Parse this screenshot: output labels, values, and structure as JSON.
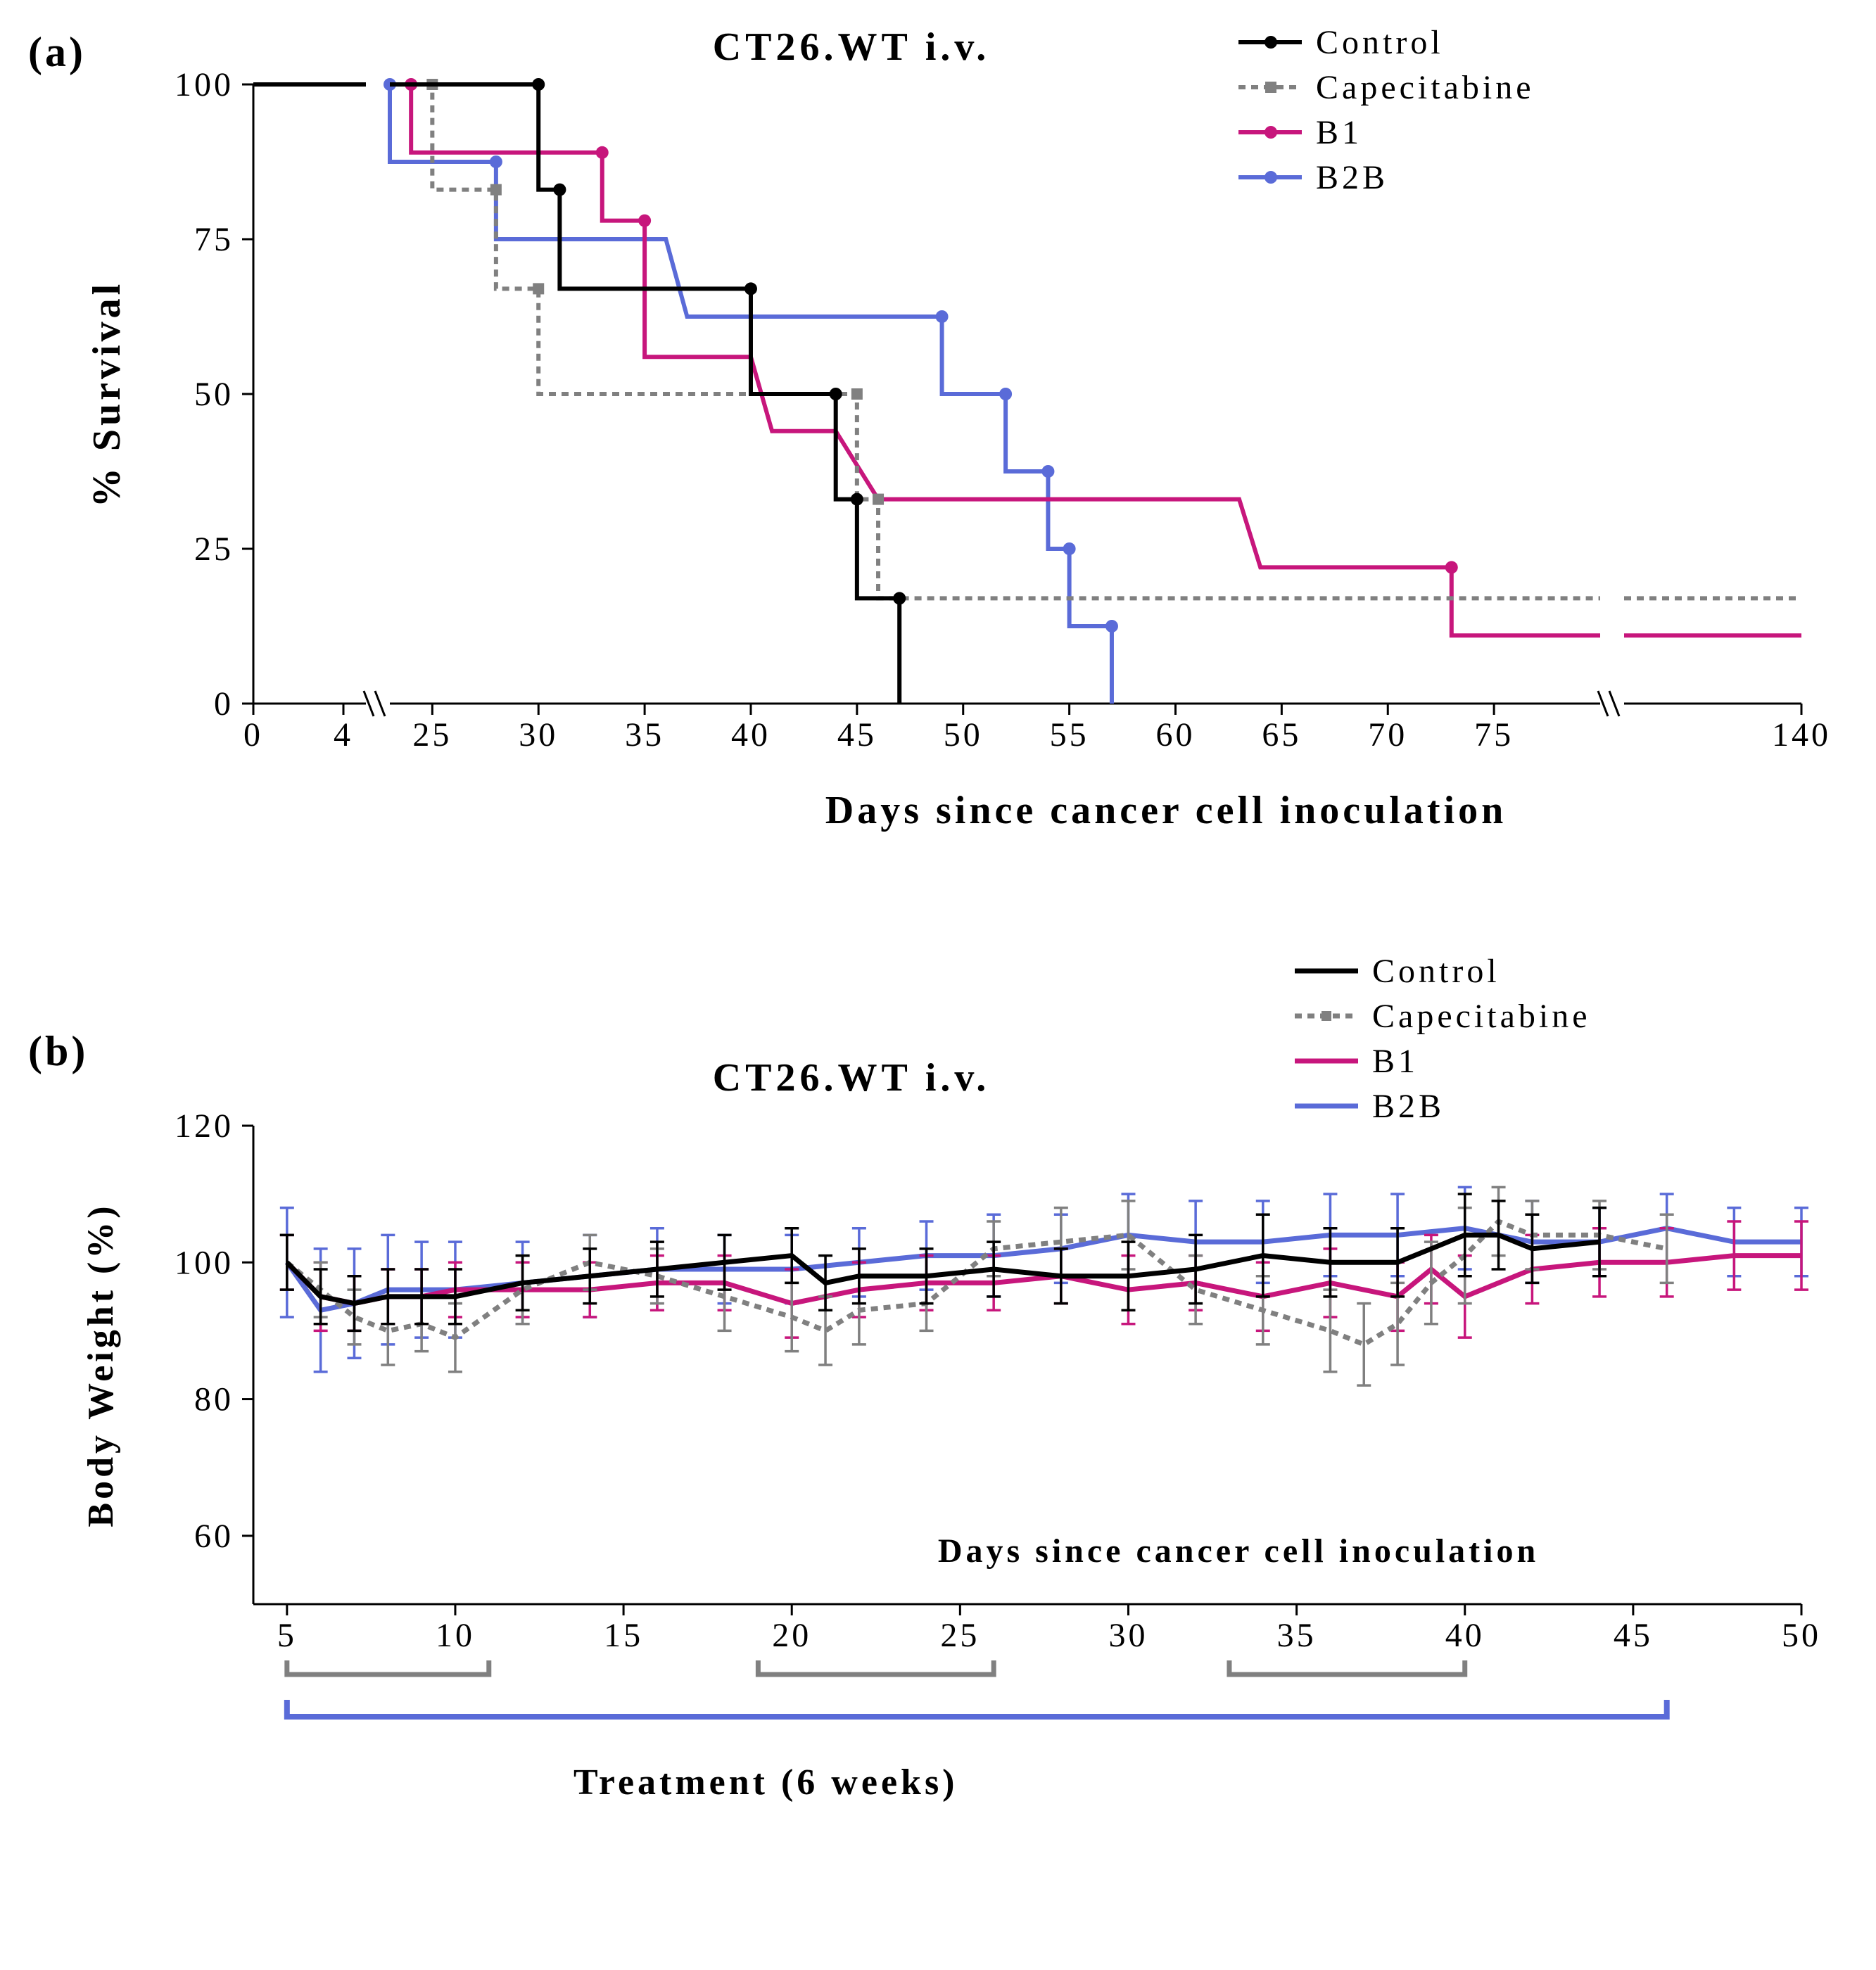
{
  "panelA": {
    "label": "(a)",
    "title": "CT26.WT i.v.",
    "ylabel": "% Survival",
    "xlabel": "Days since cancer cell inoculation",
    "ylim": [
      0,
      100
    ],
    "ytick_step": 25,
    "title_fontsize": 56,
    "label_fontsize": 56,
    "tick_fontsize": 48,
    "legend_fontsize": 48,
    "axis_break_at": 5,
    "axis_break2_at": 80,
    "x_ticks_pre": [
      0,
      4
    ],
    "x_ticks_mid": [
      25,
      30,
      35,
      40,
      45,
      50,
      55,
      60,
      65,
      70,
      75
    ],
    "x_ticks_post": [
      140
    ],
    "series": [
      {
        "name": "Control",
        "color": "#000000",
        "dash": "",
        "marker": "circle",
        "steps": [
          [
            0,
            100
          ],
          [
            30,
            100
          ],
          [
            30,
            83
          ],
          [
            31,
            83
          ],
          [
            31,
            67
          ],
          [
            40,
            67
          ],
          [
            40,
            50
          ],
          [
            44,
            50
          ],
          [
            44,
            33
          ],
          [
            45,
            33
          ],
          [
            45,
            17
          ],
          [
            47,
            17
          ],
          [
            47,
            0
          ]
        ]
      },
      {
        "name": "Capecitabine",
        "color": "#808080",
        "dash": "10 8",
        "marker": "square",
        "steps": [
          [
            0,
            100
          ],
          [
            25,
            100
          ],
          [
            25,
            83
          ],
          [
            28,
            83
          ],
          [
            28,
            67
          ],
          [
            30,
            67
          ],
          [
            30,
            50
          ],
          [
            45,
            50
          ],
          [
            45,
            33
          ],
          [
            46,
            33
          ],
          [
            46,
            17
          ],
          [
            140,
            17
          ]
        ]
      },
      {
        "name": "B1",
        "color": "#c7167c",
        "dash": "",
        "marker": "circle",
        "steps": [
          [
            0,
            100
          ],
          [
            24,
            100
          ],
          [
            24,
            89
          ],
          [
            33,
            89
          ],
          [
            33,
            78
          ],
          [
            35,
            78
          ],
          [
            35,
            56
          ],
          [
            40,
            56
          ],
          [
            41,
            44
          ],
          [
            44,
            44
          ],
          [
            46,
            33
          ],
          [
            63,
            33
          ],
          [
            64,
            22
          ],
          [
            73,
            22
          ],
          [
            73,
            11
          ],
          [
            140,
            11
          ]
        ]
      },
      {
        "name": "B2B",
        "color": "#5a6bd8",
        "dash": "",
        "marker": "circle",
        "steps": [
          [
            0,
            100
          ],
          [
            23,
            100
          ],
          [
            23,
            87.5
          ],
          [
            28,
            87.5
          ],
          [
            28,
            75
          ],
          [
            36,
            75
          ],
          [
            37,
            62.5
          ],
          [
            49,
            62.5
          ],
          [
            49,
            50
          ],
          [
            52,
            50
          ],
          [
            52,
            37.5
          ],
          [
            54,
            37.5
          ],
          [
            54,
            25
          ],
          [
            55,
            25
          ],
          [
            55,
            12.5
          ],
          [
            57,
            12.5
          ],
          [
            57,
            0
          ]
        ]
      }
    ]
  },
  "panelB": {
    "label": "(b)",
    "title": "CT26.WT i.v.",
    "ylabel": "Body Weight (%)",
    "xlabel": "Days since cancer cell inoculation",
    "ylim": [
      50,
      120
    ],
    "yticks": [
      60,
      80,
      100,
      120
    ],
    "xlim": [
      4,
      50
    ],
    "xticks": [
      5,
      10,
      15,
      20,
      25,
      30,
      35,
      40,
      45,
      50
    ],
    "title_fontsize": 56,
    "label_fontsize": 52,
    "tick_fontsize": 48,
    "legend_fontsize": 48,
    "treatment_label": "Treatment (6 weeks)",
    "cape_bars": [
      [
        5,
        11
      ],
      [
        19,
        26
      ],
      [
        33,
        40
      ]
    ],
    "treatment_bar": [
      5,
      46
    ],
    "series": [
      {
        "name": "Control",
        "color": "#000000",
        "dash": "",
        "points": [
          [
            5,
            100,
            4
          ],
          [
            6,
            95,
            4
          ],
          [
            7,
            94,
            4
          ],
          [
            8,
            95,
            4
          ],
          [
            9,
            95,
            4
          ],
          [
            10,
            95,
            4
          ],
          [
            12,
            97,
            4
          ],
          [
            14,
            98,
            4
          ],
          [
            16,
            99,
            4
          ],
          [
            18,
            100,
            4
          ],
          [
            20,
            101,
            4
          ],
          [
            21,
            97,
            4
          ],
          [
            22,
            98,
            4
          ],
          [
            24,
            98,
            4
          ],
          [
            26,
            99,
            4
          ],
          [
            28,
            98,
            4
          ],
          [
            30,
            98,
            5
          ],
          [
            32,
            99,
            5
          ],
          [
            34,
            101,
            6
          ],
          [
            36,
            100,
            5
          ],
          [
            38,
            100,
            5
          ],
          [
            40,
            104,
            6
          ],
          [
            41,
            104,
            5
          ],
          [
            42,
            102,
            5
          ],
          [
            44,
            103,
            5
          ]
        ]
      },
      {
        "name": "Capecitabine",
        "color": "#808080",
        "dash": "10 8",
        "points": [
          [
            5,
            100,
            4
          ],
          [
            6,
            96,
            4
          ],
          [
            7,
            92,
            4
          ],
          [
            8,
            90,
            5
          ],
          [
            9,
            91,
            4
          ],
          [
            10,
            89,
            5
          ],
          [
            12,
            96,
            5
          ],
          [
            14,
            100,
            4
          ],
          [
            16,
            98,
            4
          ],
          [
            18,
            95,
            5
          ],
          [
            20,
            92,
            5
          ],
          [
            21,
            90,
            5
          ],
          [
            22,
            93,
            5
          ],
          [
            24,
            94,
            4
          ],
          [
            26,
            102,
            4
          ],
          [
            28,
            103,
            5
          ],
          [
            30,
            104,
            5
          ],
          [
            32,
            96,
            5
          ],
          [
            34,
            93,
            5
          ],
          [
            36,
            90,
            6
          ],
          [
            37,
            88,
            6
          ],
          [
            38,
            91,
            6
          ],
          [
            39,
            97,
            6
          ],
          [
            40,
            101,
            7
          ],
          [
            41,
            106,
            5
          ],
          [
            42,
            104,
            5
          ],
          [
            44,
            104,
            5
          ],
          [
            46,
            102,
            5
          ]
        ]
      },
      {
        "name": "B1",
        "color": "#c7167c",
        "dash": "",
        "points": [
          [
            5,
            100,
            4
          ],
          [
            6,
            95,
            5
          ],
          [
            7,
            94,
            4
          ],
          [
            8,
            95,
            4
          ],
          [
            9,
            95,
            4
          ],
          [
            10,
            96,
            4
          ],
          [
            12,
            96,
            4
          ],
          [
            14,
            96,
            4
          ],
          [
            16,
            97,
            4
          ],
          [
            18,
            97,
            4
          ],
          [
            20,
            94,
            5
          ],
          [
            22,
            96,
            4
          ],
          [
            24,
            97,
            4
          ],
          [
            26,
            97,
            4
          ],
          [
            28,
            98,
            4
          ],
          [
            30,
            96,
            5
          ],
          [
            32,
            97,
            4
          ],
          [
            34,
            95,
            5
          ],
          [
            36,
            97,
            5
          ],
          [
            38,
            95,
            5
          ],
          [
            39,
            99,
            5
          ],
          [
            40,
            95,
            6
          ],
          [
            42,
            99,
            5
          ],
          [
            44,
            100,
            5
          ],
          [
            46,
            100,
            5
          ],
          [
            48,
            101,
            5
          ],
          [
            50,
            101,
            5
          ]
        ]
      },
      {
        "name": "B2B",
        "color": "#5a6bd8",
        "dash": "",
        "points": [
          [
            5,
            100,
            8
          ],
          [
            6,
            93,
            9
          ],
          [
            7,
            94,
            8
          ],
          [
            8,
            96,
            8
          ],
          [
            9,
            96,
            7
          ],
          [
            10,
            96,
            7
          ],
          [
            12,
            97,
            6
          ],
          [
            14,
            98,
            6
          ],
          [
            16,
            99,
            6
          ],
          [
            18,
            99,
            5
          ],
          [
            20,
            99,
            5
          ],
          [
            22,
            100,
            5
          ],
          [
            24,
            101,
            5
          ],
          [
            26,
            101,
            6
          ],
          [
            28,
            102,
            5
          ],
          [
            30,
            104,
            6
          ],
          [
            32,
            103,
            6
          ],
          [
            34,
            103,
            6
          ],
          [
            36,
            104,
            6
          ],
          [
            38,
            104,
            6
          ],
          [
            40,
            105,
            6
          ],
          [
            42,
            103,
            6
          ],
          [
            44,
            103,
            5
          ],
          [
            46,
            105,
            5
          ],
          [
            48,
            103,
            5
          ],
          [
            50,
            103,
            5
          ]
        ]
      }
    ]
  }
}
